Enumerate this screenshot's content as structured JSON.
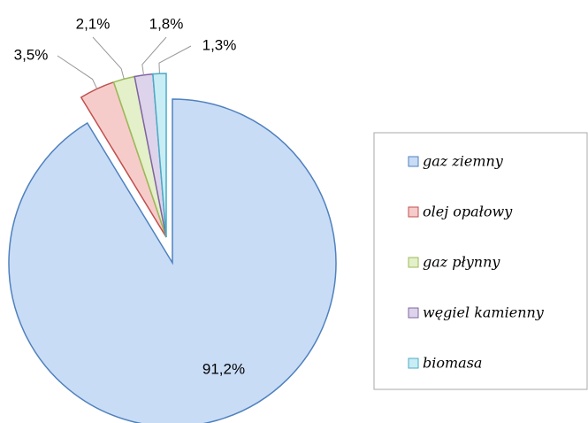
{
  "chart_data": {
    "type": "pie",
    "categories": [
      "gaz ziemny",
      "olej opałowy",
      "gaz płynny",
      "węgiel kamienny",
      "biomasa"
    ],
    "values": [
      91.2,
      3.5,
      2.1,
      1.8,
      1.3
    ],
    "value_labels": [
      "91,2%",
      "3,5%",
      "2,1%",
      "1,8%",
      "1,3%"
    ],
    "colors": [
      "#c9dcf6",
      "#f6cccb",
      "#e4f0c9",
      "#ddd4eb",
      "#c9edf4"
    ],
    "edgecolors": [
      "#4f81bd",
      "#c0504d",
      "#9bbb59",
      "#8064a2",
      "#4bacc6"
    ],
    "legend": "right"
  }
}
